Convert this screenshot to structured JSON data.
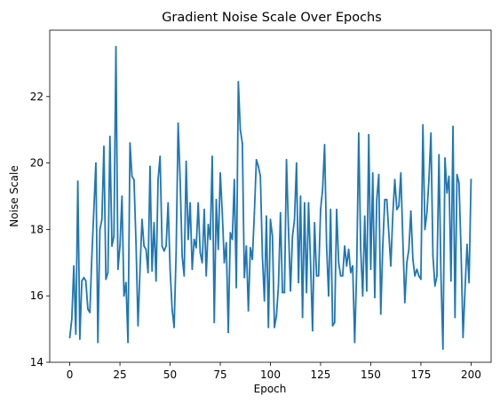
{
  "chart_data": {
    "type": "line",
    "title": "Gradient Noise Scale Over Epochs",
    "xlabel": "Epoch",
    "ylabel": "Noise Scale",
    "xlim": [
      -10,
      210
    ],
    "ylim": [
      14.0,
      24.0
    ],
    "x_ticks": [
      0,
      25,
      50,
      75,
      100,
      125,
      150,
      175,
      200
    ],
    "y_ticks": [
      14,
      16,
      18,
      20,
      22
    ],
    "grid": false,
    "line_color": "#1f77b4",
    "series": [
      {
        "values": [
          14.75,
          15.3,
          16.9,
          14.85,
          19.45,
          14.7,
          16.45,
          16.55,
          16.45,
          15.6,
          15.5,
          17.2,
          18.6,
          20.0,
          14.6,
          18.0,
          18.3,
          20.5,
          16.5,
          16.7,
          20.8,
          17.5,
          17.8,
          23.5,
          16.8,
          17.5,
          19.0,
          16.0,
          16.4,
          14.6,
          20.6,
          19.6,
          19.5,
          17.6,
          15.1,
          16.8,
          18.3,
          17.5,
          17.4,
          16.7,
          19.9,
          16.75,
          18.2,
          16.45,
          19.5,
          20.2,
          17.5,
          17.35,
          17.5,
          18.8,
          16.8,
          15.6,
          15.05,
          17.3,
          21.2,
          19.5,
          17.2,
          16.6,
          20.05,
          17.7,
          18.8,
          16.8,
          17.7,
          17.45,
          18.8,
          17.3,
          17.0,
          18.6,
          16.6,
          18.15,
          17.7,
          20.2,
          15.2,
          18.9,
          17.4,
          19.7,
          18.5,
          17.0,
          17.6,
          14.9,
          17.9,
          17.7,
          19.5,
          16.25,
          22.45,
          21.0,
          20.6,
          16.55,
          17.5,
          15.55,
          17.45,
          17.1,
          18.5,
          20.1,
          19.9,
          19.6,
          17.2,
          15.85,
          18.4,
          15.05,
          18.3,
          17.8,
          15.05,
          15.4,
          16.3,
          18.5,
          16.1,
          16.1,
          20.1,
          18.0,
          16.15,
          17.8,
          18.3,
          20.0,
          16.4,
          19.0,
          15.35,
          18.8,
          16.1,
          18.8,
          17.0,
          14.95,
          18.2,
          16.6,
          16.6,
          18.6,
          19.2,
          20.55,
          17.5,
          16.0,
          18.6,
          15.1,
          15.2,
          18.6,
          17.0,
          16.6,
          16.6,
          17.5,
          16.9,
          17.4,
          16.7,
          16.9,
          14.6,
          16.8,
          20.9,
          17.4,
          16.0,
          18.4,
          16.15,
          20.85,
          16.8,
          19.7,
          15.95,
          18.9,
          19.65,
          15.45,
          17.5,
          18.9,
          18.9,
          17.9,
          16.9,
          18.45,
          19.5,
          18.6,
          18.7,
          19.7,
          17.7,
          15.8,
          17.0,
          17.4,
          18.55,
          17.1,
          16.6,
          16.8,
          16.6,
          16.5,
          21.15,
          18.0,
          18.5,
          19.5,
          20.9,
          17.2,
          16.3,
          16.6,
          20.25,
          16.6,
          14.4,
          20.15,
          19.1,
          19.6,
          16.45,
          21.1,
          15.35,
          19.65,
          19.4,
          17.4,
          14.75,
          16.2,
          17.55,
          16.4,
          19.5
        ]
      }
    ]
  }
}
